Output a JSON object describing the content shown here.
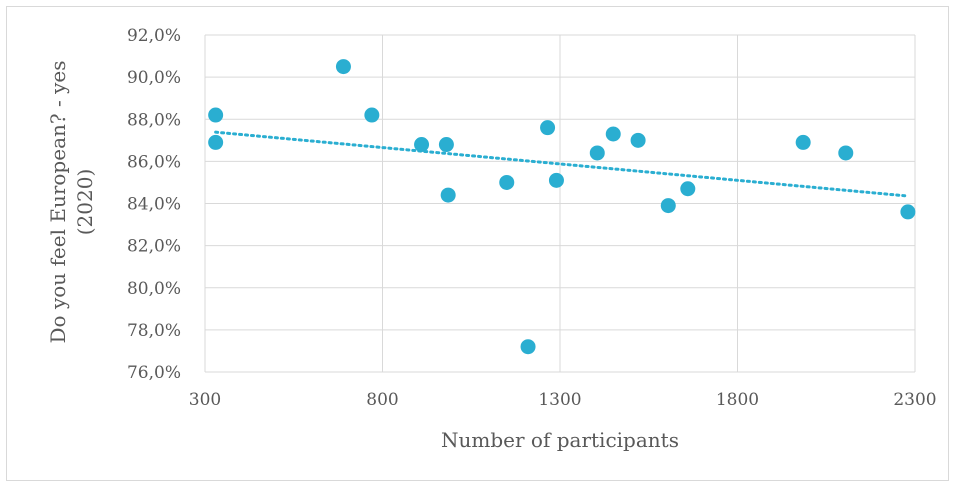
{
  "chart_data": {
    "type": "scatter",
    "title": "",
    "xlabel": "Number of participants",
    "ylabel_lines": [
      "Do you feel European? - yes",
      "(2020)"
    ],
    "xlim": [
      300,
      2300
    ],
    "ylim": [
      76.0,
      92.0
    ],
    "x_ticks": [
      300,
      800,
      1300,
      1800,
      2300
    ],
    "y_ticks": [
      76.0,
      78.0,
      80.0,
      82.0,
      84.0,
      86.0,
      88.0,
      90.0,
      92.0
    ],
    "y_tick_labels": [
      "76,0%",
      "78,0%",
      "80,0%",
      "82,0%",
      "84,0%",
      "86,0%",
      "88,0%",
      "90,0%",
      "92,0%"
    ],
    "x_tick_labels": [
      "300",
      "800",
      "1300",
      "1800",
      "2300"
    ],
    "grid": true,
    "marker_color": "#2aaed1",
    "trendline": {
      "type": "linear",
      "style": "dotted",
      "color": "#2aaed1",
      "x_start": 330,
      "x_end": 2280
    },
    "points": [
      {
        "x": 330,
        "y": 88.2
      },
      {
        "x": 330,
        "y": 86.9
      },
      {
        "x": 690,
        "y": 90.5
      },
      {
        "x": 770,
        "y": 88.2
      },
      {
        "x": 910,
        "y": 86.8
      },
      {
        "x": 980,
        "y": 86.8
      },
      {
        "x": 985,
        "y": 84.4
      },
      {
        "x": 1150,
        "y": 85.0
      },
      {
        "x": 1210,
        "y": 77.2
      },
      {
        "x": 1265,
        "y": 87.6
      },
      {
        "x": 1290,
        "y": 85.1
      },
      {
        "x": 1405,
        "y": 86.4
      },
      {
        "x": 1450,
        "y": 87.3
      },
      {
        "x": 1520,
        "y": 87.0
      },
      {
        "x": 1605,
        "y": 83.9
      },
      {
        "x": 1660,
        "y": 84.7
      },
      {
        "x": 1985,
        "y": 86.9
      },
      {
        "x": 2105,
        "y": 86.4
      },
      {
        "x": 2280,
        "y": 83.6
      }
    ]
  }
}
